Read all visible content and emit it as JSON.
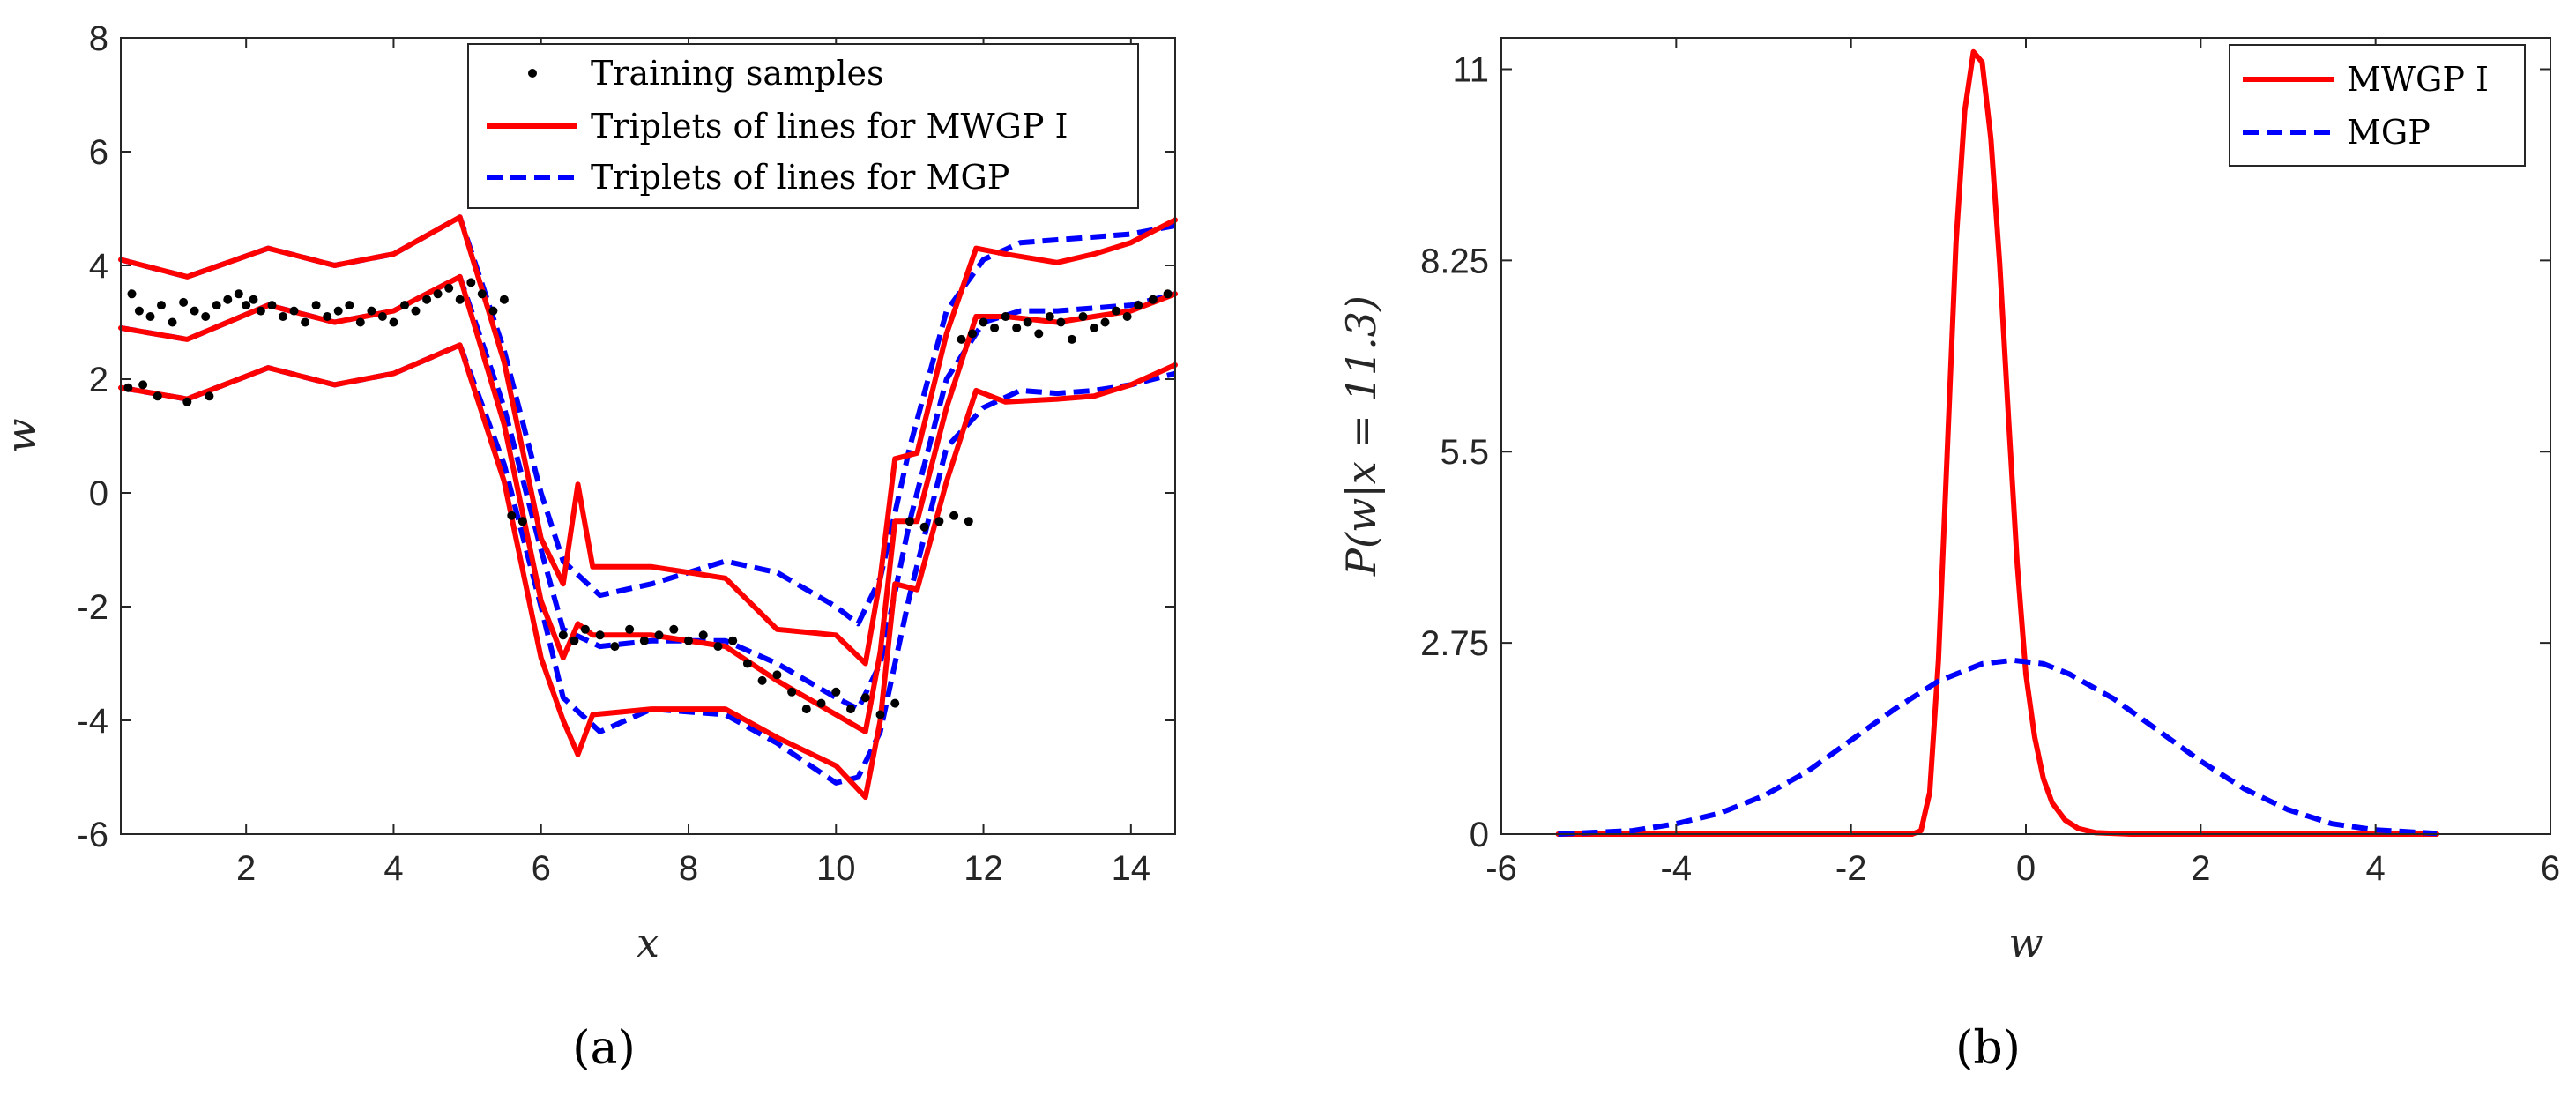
{
  "chart_data": [
    {
      "type": "line",
      "panel": "a",
      "caption": "(a)",
      "xlabel": "x",
      "ylabel": "w",
      "xlim": [
        0.3,
        14.6
      ],
      "ylim": [
        -6,
        8
      ],
      "xticks": [
        2,
        4,
        6,
        8,
        10,
        12,
        14
      ],
      "xtick_labels": [
        "2",
        "4",
        "6",
        "8",
        "10",
        "12",
        "14"
      ],
      "yticks": [
        -6,
        -4,
        -2,
        0,
        2,
        4,
        6,
        8
      ],
      "ytick_labels": [
        "-6",
        "-4",
        "-2",
        "0",
        "2",
        "4",
        "6",
        "8"
      ],
      "legend_position": "top-right",
      "legend": [
        "Training samples",
        "Triplets of lines for MWGP I",
        "Triplets of lines for MGP"
      ],
      "colors": {
        "samples": "#000000",
        "mwgp": "#ff0000",
        "mgp": "#0000ff"
      },
      "series": [
        {
          "name": "MGP upper",
          "style": "dashed",
          "color": "#0000ff",
          "x": [
            0.3,
            1.2,
            2.3,
            3.2,
            4.0,
            4.9,
            5.5,
            6.0,
            6.3,
            6.8,
            7.5,
            8.5,
            9.2,
            10.0,
            10.3,
            10.6,
            11.0,
            11.5,
            12.0,
            12.5,
            13.0,
            13.5,
            14.0,
            14.6
          ],
          "y": [
            4.1,
            3.8,
            4.3,
            4.0,
            4.2,
            4.85,
            2.5,
            0.0,
            -1.2,
            -1.8,
            -1.6,
            -1.2,
            -1.4,
            -2.0,
            -2.3,
            -1.5,
            0.8,
            3.2,
            4.1,
            4.4,
            4.45,
            4.5,
            4.55,
            4.7
          ]
        },
        {
          "name": "MGP middle",
          "style": "dashed",
          "color": "#0000ff",
          "x": [
            0.3,
            1.2,
            2.3,
            3.2,
            4.0,
            4.9,
            5.5,
            6.0,
            6.3,
            6.8,
            7.5,
            8.5,
            9.2,
            10.0,
            10.3,
            10.6,
            11.0,
            11.5,
            12.0,
            12.5,
            13.0,
            13.5,
            14.0,
            14.6
          ],
          "y": [
            2.9,
            2.7,
            3.3,
            3.0,
            3.2,
            3.8,
            1.5,
            -1.0,
            -2.4,
            -2.7,
            -2.6,
            -2.6,
            -3.0,
            -3.6,
            -3.8,
            -3.0,
            -0.5,
            2.0,
            3.0,
            3.2,
            3.2,
            3.25,
            3.3,
            3.5
          ]
        },
        {
          "name": "MGP lower",
          "style": "dashed",
          "color": "#0000ff",
          "x": [
            0.3,
            1.2,
            2.3,
            3.2,
            4.0,
            4.9,
            5.5,
            6.0,
            6.3,
            6.8,
            7.5,
            8.5,
            9.2,
            10.0,
            10.3,
            10.6,
            11.0,
            11.5,
            12.0,
            12.5,
            13.0,
            13.5,
            14.0,
            14.6
          ],
          "y": [
            1.85,
            1.65,
            2.2,
            1.9,
            2.1,
            2.6,
            0.5,
            -2.0,
            -3.6,
            -4.2,
            -3.8,
            -3.9,
            -4.4,
            -5.1,
            -5.0,
            -4.2,
            -1.8,
            0.8,
            1.5,
            1.8,
            1.75,
            1.8,
            1.9,
            2.1
          ]
        },
        {
          "name": "MWGP I upper",
          "style": "solid",
          "color": "#ff0000",
          "x": [
            0.3,
            1.2,
            2.3,
            3.2,
            4.0,
            4.9,
            5.5,
            6.0,
            6.3,
            6.5,
            6.7,
            7.5,
            8.5,
            9.2,
            10.0,
            10.4,
            10.6,
            10.8,
            11.1,
            11.5,
            11.9,
            12.3,
            13.0,
            13.5,
            14.0,
            14.6
          ],
          "y": [
            4.1,
            3.8,
            4.3,
            4.0,
            4.2,
            4.85,
            2.3,
            -0.8,
            -1.6,
            0.15,
            -1.3,
            -1.3,
            -1.5,
            -2.4,
            -2.5,
            -3.0,
            -1.5,
            0.6,
            0.7,
            2.8,
            4.3,
            4.2,
            4.05,
            4.2,
            4.4,
            4.8
          ]
        },
        {
          "name": "MWGP I middle",
          "style": "solid",
          "color": "#ff0000",
          "x": [
            0.3,
            1.2,
            2.3,
            3.2,
            4.0,
            4.9,
            5.5,
            6.0,
            6.3,
            6.5,
            6.7,
            7.5,
            8.5,
            9.2,
            10.0,
            10.4,
            10.6,
            10.8,
            11.1,
            11.5,
            11.9,
            12.3,
            13.0,
            13.5,
            14.0,
            14.6
          ],
          "y": [
            2.9,
            2.7,
            3.3,
            3.0,
            3.2,
            3.8,
            1.2,
            -1.9,
            -2.9,
            -2.3,
            -2.5,
            -2.5,
            -2.7,
            -3.3,
            -3.9,
            -4.2,
            -2.8,
            -0.5,
            -0.5,
            1.5,
            3.1,
            3.1,
            3.0,
            3.1,
            3.2,
            3.5
          ]
        },
        {
          "name": "MWGP I lower",
          "style": "solid",
          "color": "#ff0000",
          "x": [
            0.3,
            1.2,
            2.3,
            3.2,
            4.0,
            4.9,
            5.5,
            6.0,
            6.3,
            6.5,
            6.7,
            7.5,
            8.5,
            9.2,
            10.0,
            10.4,
            10.6,
            10.8,
            11.1,
            11.5,
            11.9,
            12.3,
            13.0,
            13.5,
            14.0,
            14.6
          ],
          "y": [
            1.85,
            1.65,
            2.2,
            1.9,
            2.1,
            2.6,
            0.2,
            -2.9,
            -4.0,
            -4.6,
            -3.9,
            -3.8,
            -3.8,
            -4.3,
            -4.8,
            -5.35,
            -4.0,
            -1.6,
            -1.7,
            0.2,
            1.8,
            1.6,
            1.65,
            1.7,
            1.9,
            2.25
          ]
        }
      ],
      "scatter": {
        "name": "Training samples",
        "x": [
          0.45,
          0.55,
          0.7,
          0.85,
          1.0,
          1.15,
          1.3,
          1.45,
          1.6,
          1.75,
          1.9,
          2.0,
          2.1,
          2.2,
          2.35,
          2.5,
          2.65,
          2.8,
          2.95,
          3.1,
          3.25,
          3.4,
          3.55,
          3.7,
          3.85,
          4.0,
          4.15,
          4.3,
          4.45,
          4.6,
          4.75,
          4.9,
          5.05,
          5.2,
          5.35,
          5.5,
          0.4,
          0.6,
          0.8,
          1.2,
          1.5,
          5.6,
          5.75,
          6.3,
          6.45,
          6.6,
          6.8,
          7.0,
          7.2,
          7.4,
          7.6,
          7.8,
          8.0,
          8.2,
          8.4,
          8.6,
          8.8,
          9.0,
          9.2,
          9.4,
          9.6,
          9.8,
          10.0,
          10.2,
          10.4,
          10.6,
          10.8,
          11.0,
          11.2,
          11.4,
          11.6,
          11.8,
          11.7,
          11.85,
          12.0,
          12.15,
          12.3,
          12.45,
          12.6,
          12.75,
          12.9,
          13.05,
          13.2,
          13.35,
          13.5,
          13.65,
          13.8,
          13.95,
          14.1,
          14.3,
          14.5
        ],
        "y": [
          3.5,
          3.2,
          3.1,
          3.3,
          3.0,
          3.35,
          3.2,
          3.1,
          3.3,
          3.4,
          3.5,
          3.3,
          3.4,
          3.2,
          3.3,
          3.1,
          3.2,
          3.0,
          3.3,
          3.1,
          3.2,
          3.3,
          3.0,
          3.2,
          3.1,
          3.0,
          3.3,
          3.2,
          3.4,
          3.5,
          3.6,
          3.4,
          3.7,
          3.5,
          3.2,
          3.4,
          1.85,
          1.9,
          1.7,
          1.6,
          1.7,
          -0.4,
          -0.5,
          -2.5,
          -2.6,
          -2.4,
          -2.5,
          -2.7,
          -2.4,
          -2.6,
          -2.5,
          -2.4,
          -2.6,
          -2.5,
          -2.7,
          -2.6,
          -3.0,
          -3.3,
          -3.2,
          -3.5,
          -3.8,
          -3.7,
          -3.5,
          -3.8,
          -3.6,
          -3.9,
          -3.7,
          -0.5,
          -0.6,
          -0.5,
          -0.4,
          -0.5,
          2.7,
          2.8,
          3.0,
          2.9,
          3.1,
          2.9,
          3.0,
          2.8,
          3.1,
          3.0,
          2.7,
          3.1,
          2.9,
          3.0,
          3.2,
          3.1,
          3.3,
          3.4,
          3.5
        ]
      }
    },
    {
      "type": "line",
      "panel": "b",
      "caption": "(b)",
      "xlabel": "w",
      "ylabel": "P(w|x = 11.3)",
      "xlim": [
        -6,
        6
      ],
      "ylim": [
        0,
        11.45
      ],
      "xticks": [
        -6,
        -4,
        -2,
        0,
        2,
        4,
        6
      ],
      "xtick_labels": [
        "-6",
        "-4",
        "-2",
        "0",
        "2",
        "4",
        "6"
      ],
      "yticks": [
        0,
        2.75,
        5.5,
        8.25,
        11
      ],
      "ytick_labels": [
        "0",
        "2.75",
        "5.5",
        "8.25",
        "11"
      ],
      "legend_position": "top-right",
      "legend": [
        "MWGP I",
        "MGP"
      ],
      "series": [
        {
          "name": "MWGP I",
          "style": "solid",
          "color": "#ff0000",
          "x": [
            -5.35,
            -1.3,
            -1.2,
            -1.1,
            -1.0,
            -0.9,
            -0.8,
            -0.7,
            -0.6,
            -0.5,
            -0.4,
            -0.3,
            -0.2,
            -0.1,
            0.0,
            0.1,
            0.2,
            0.3,
            0.45,
            0.6,
            0.8,
            1.2,
            4.7
          ],
          "y": [
            0.0,
            0.0,
            0.05,
            0.6,
            2.5,
            5.5,
            8.5,
            10.4,
            11.25,
            11.1,
            10.0,
            8.2,
            6.0,
            3.9,
            2.3,
            1.4,
            0.8,
            0.45,
            0.2,
            0.08,
            0.02,
            0.0,
            0.0
          ]
        },
        {
          "name": "MGP",
          "style": "dashed",
          "color": "#0000ff",
          "x": [
            -5.35,
            -4.5,
            -4.0,
            -3.5,
            -3.0,
            -2.5,
            -2.0,
            -1.5,
            -1.0,
            -0.5,
            -0.15,
            0.2,
            0.5,
            1.0,
            1.5,
            2.0,
            2.5,
            3.0,
            3.5,
            4.0,
            4.7
          ],
          "y": [
            0.0,
            0.05,
            0.15,
            0.3,
            0.55,
            0.9,
            1.35,
            1.8,
            2.2,
            2.45,
            2.5,
            2.45,
            2.3,
            1.95,
            1.5,
            1.05,
            0.65,
            0.35,
            0.15,
            0.06,
            0.01
          ]
        }
      ]
    }
  ]
}
